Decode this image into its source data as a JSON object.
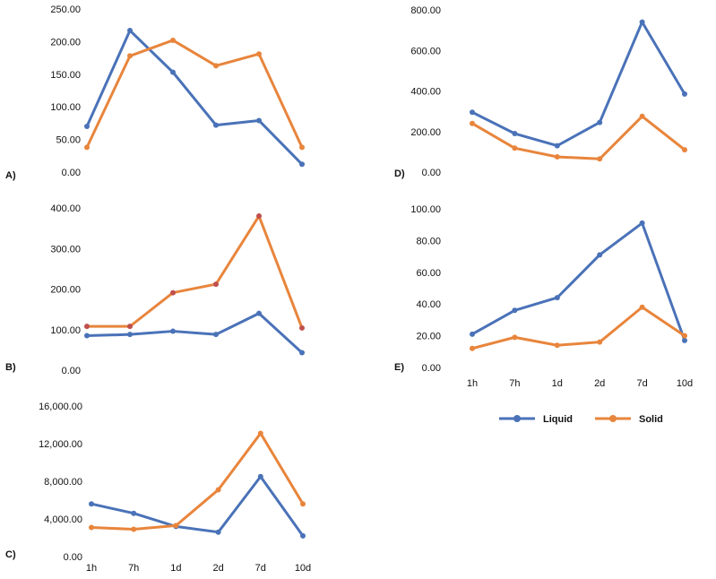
{
  "colors": {
    "liquid": "#4a72b8",
    "solid": "#e8853c",
    "solid_marker_b": "#c0504d"
  },
  "legend": {
    "liquid": "Liquid",
    "solid": "Solid"
  },
  "chart_data": [
    {
      "id": "A",
      "type": "line",
      "panel_label": "A)",
      "categories": [
        "1h",
        "7h",
        "1d",
        "2d",
        "7d",
        "10d"
      ],
      "series": [
        {
          "name": "Liquid",
          "values": [
            70,
            217,
            153,
            72,
            79,
            12
          ]
        },
        {
          "name": "Solid",
          "values": [
            38,
            178,
            202,
            163,
            181,
            38
          ]
        }
      ],
      "ylim": [
        0,
        250
      ],
      "yticks": [
        "0.00",
        "50.00",
        "100.00",
        "150.00",
        "200.00",
        "250.00"
      ]
    },
    {
      "id": "B",
      "type": "line",
      "panel_label": "B)",
      "categories": [
        "1h",
        "7h",
        "1d",
        "2d",
        "7d",
        "10d"
      ],
      "series": [
        {
          "name": "Liquid",
          "values": [
            85,
            88,
            96,
            88,
            140,
            43
          ]
        },
        {
          "name": "Solid",
          "values": [
            108,
            108,
            191,
            212,
            380,
            104
          ]
        }
      ],
      "ylim": [
        0,
        400
      ],
      "yticks": [
        "0.00",
        "100.00",
        "200.00",
        "300.00",
        "400.00"
      ]
    },
    {
      "id": "C",
      "type": "line",
      "panel_label": "C)",
      "categories": [
        "1h",
        "7h",
        "1d",
        "2d",
        "7d",
        "10d"
      ],
      "series": [
        {
          "name": "Liquid",
          "values": [
            5600,
            4600,
            3200,
            2600,
            8500,
            2200
          ]
        },
        {
          "name": "Solid",
          "values": [
            3100,
            2900,
            3300,
            7100,
            13100,
            5600
          ]
        }
      ],
      "ylim": [
        0,
        16000
      ],
      "yticks": [
        "0.00",
        "4,000.00",
        "8,000.00",
        "12,000.00",
        "16,000.00"
      ],
      "xticks": [
        "1h",
        "7h",
        "1d",
        "2d",
        "7d",
        "10d"
      ]
    },
    {
      "id": "D",
      "type": "line",
      "panel_label": "D)",
      "categories": [
        "1h",
        "7h",
        "1d",
        "2d",
        "7d",
        "10d"
      ],
      "series": [
        {
          "name": "Liquid",
          "values": [
            295,
            190,
            130,
            245,
            740,
            385
          ]
        },
        {
          "name": "Solid",
          "values": [
            240,
            118,
            75,
            65,
            275,
            110
          ]
        }
      ],
      "ylim": [
        0,
        800
      ],
      "yticks": [
        "0.00",
        "200.00",
        "400.00",
        "600.00",
        "800.00"
      ]
    },
    {
      "id": "E",
      "type": "line",
      "panel_label": "E)",
      "categories": [
        "1h",
        "7h",
        "1d",
        "2d",
        "7d",
        "10d"
      ],
      "series": [
        {
          "name": "Liquid",
          "values": [
            21,
            36,
            44,
            71,
            91,
            17
          ]
        },
        {
          "name": "Solid",
          "values": [
            12,
            19,
            14,
            16,
            38,
            20
          ]
        }
      ],
      "ylim": [
        0,
        100
      ],
      "yticks": [
        "0.00",
        "20.00",
        "40.00",
        "60.00",
        "80.00",
        "100.00"
      ],
      "xticks": [
        "1h",
        "7h",
        "1d",
        "2d",
        "7d",
        "10d"
      ]
    }
  ]
}
